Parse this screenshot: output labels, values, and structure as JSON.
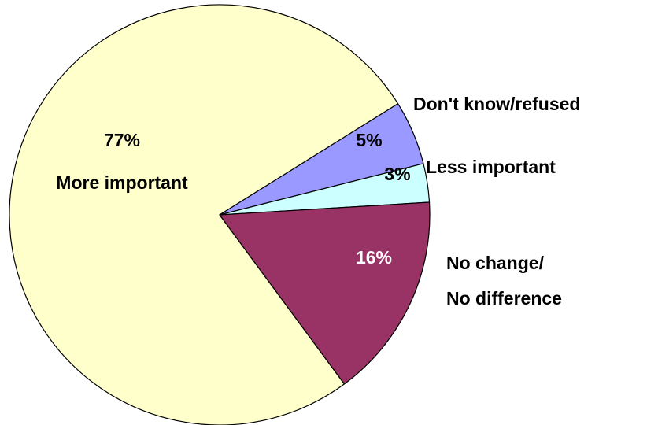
{
  "chart_data": {
    "type": "pie",
    "slices": [
      {
        "key": "more",
        "value": 77,
        "value_label": "77%",
        "label": "More important",
        "color": "#FFFFCC"
      },
      {
        "key": "dk",
        "value": 5,
        "value_label": "5%",
        "label": "Don't know/refused",
        "color": "#9999FF"
      },
      {
        "key": "less",
        "value": 3,
        "value_label": "3%",
        "label": "Less important",
        "color": "#CCFFFF"
      },
      {
        "key": "nochange",
        "value": 16,
        "value_label": "16%",
        "label_lines": [
          "No change/",
          "No difference"
        ],
        "color": "#993366"
      }
    ],
    "legend": "none"
  }
}
